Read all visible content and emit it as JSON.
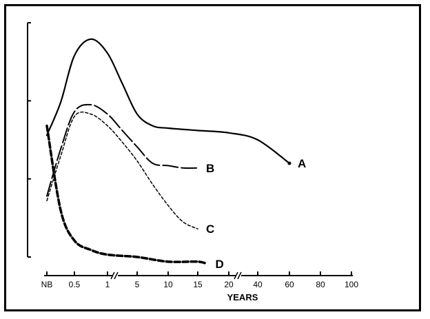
{
  "chart_data": {
    "type": "line",
    "xlabel": "YEARS",
    "ylabel": "",
    "x_ticks": [
      "NB",
      "0.5",
      "1",
      "5",
      "10",
      "15",
      "20",
      "40",
      "60",
      "80",
      "100"
    ],
    "x_axis_break": true,
    "y_ticks": 4,
    "grid": false,
    "legend": "end-of-line labels",
    "series": [
      {
        "name": "A",
        "style": "solid",
        "points": [
          [
            0,
            0.52
          ],
          [
            0.5,
            0.66
          ],
          [
            1,
            0.86
          ],
          [
            1.5,
            0.93
          ],
          [
            2,
            0.87
          ],
          [
            2.5,
            0.74
          ],
          [
            3,
            0.61
          ],
          [
            3.5,
            0.56
          ],
          [
            4,
            0.55
          ],
          [
            5,
            0.54
          ],
          [
            6,
            0.53
          ],
          [
            7,
            0.5
          ],
          [
            8,
            0.4
          ]
        ]
      },
      {
        "name": "B",
        "style": "long-dash",
        "points": [
          [
            0,
            0.26
          ],
          [
            0.5,
            0.46
          ],
          [
            1,
            0.62
          ],
          [
            1.5,
            0.65
          ],
          [
            2,
            0.61
          ],
          [
            2.5,
            0.54
          ],
          [
            3,
            0.47
          ],
          [
            3.5,
            0.4
          ],
          [
            4,
            0.39
          ],
          [
            4.5,
            0.38
          ],
          [
            5,
            0.38
          ]
        ]
      },
      {
        "name": "C",
        "style": "short-dash",
        "points": [
          [
            0,
            0.24
          ],
          [
            0.5,
            0.43
          ],
          [
            1,
            0.6
          ],
          [
            1.5,
            0.61
          ],
          [
            2,
            0.56
          ],
          [
            2.5,
            0.49
          ],
          [
            3,
            0.41
          ],
          [
            3.5,
            0.31
          ],
          [
            4,
            0.22
          ],
          [
            4.5,
            0.15
          ],
          [
            5,
            0.12
          ]
        ]
      },
      {
        "name": "D",
        "style": "heavy-dash",
        "points": [
          [
            0,
            0.56
          ],
          [
            0.5,
            0.2
          ],
          [
            1,
            0.07
          ],
          [
            1.5,
            0.03
          ],
          [
            2,
            0.01
          ],
          [
            3,
            0.0
          ],
          [
            4,
            -0.02
          ],
          [
            5,
            -0.02
          ],
          [
            5.3,
            -0.03
          ]
        ]
      }
    ]
  }
}
